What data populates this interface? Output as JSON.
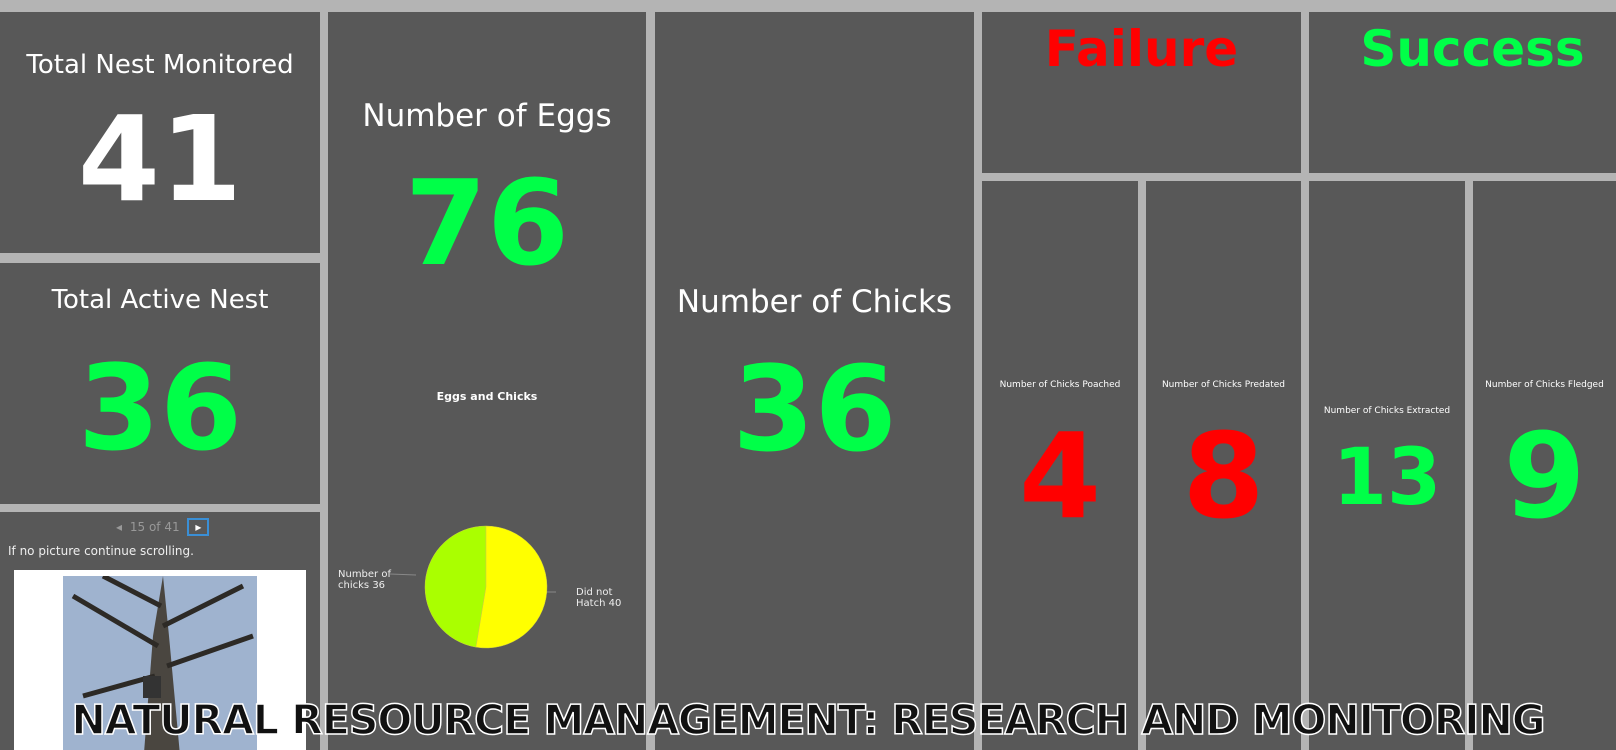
{
  "total_nest": {
    "title": "Total Nest Monitored",
    "value": "41"
  },
  "active_nest": {
    "title": "Total Active Nest",
    "value": "36"
  },
  "gallery": {
    "pager": "15 of 41",
    "note": "If no picture continue scrolling."
  },
  "eggs": {
    "title": "Number of Eggs",
    "value": "76"
  },
  "pie": {
    "title": "Eggs and Chicks",
    "slices": [
      {
        "label": "Number of chicks",
        "value": 36,
        "color": "#aaff00"
      },
      {
        "label": "Did not Hatch",
        "value": 40,
        "color": "#ffff00"
      }
    ]
  },
  "chicks": {
    "title": "Number of Chicks",
    "value": "36"
  },
  "failure": {
    "title": "Failure"
  },
  "success": {
    "title": "Success"
  },
  "poached": {
    "title": "Number of Chicks Poached",
    "value": "4"
  },
  "predated": {
    "title": "Number of Chicks Predated",
    "value": "8"
  },
  "extracted": {
    "title": "Number of Chicks Extracted",
    "value": "13"
  },
  "fledged": {
    "title": "Number of Chicks Fledged",
    "value": "9"
  },
  "banner": "NATURAL RESOURCE MANAGEMENT: RESEARCH AND MONITORING"
}
